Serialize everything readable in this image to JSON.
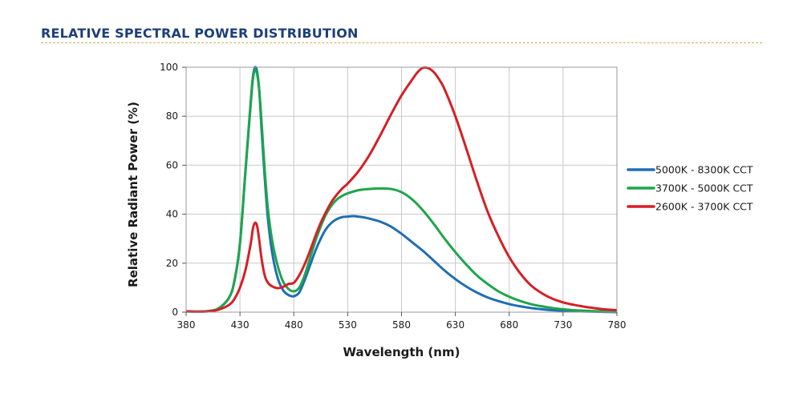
{
  "section": {
    "title": "RELATIVE SPECTRAL POWER DISTRIBUTION"
  },
  "chart_data": {
    "type": "line",
    "title": "",
    "xlabel": "Wavelength (nm)",
    "ylabel": "Relative Radiant Power (%)",
    "xlim": [
      380,
      780
    ],
    "ylim": [
      0,
      100
    ],
    "xticks": [
      380,
      430,
      480,
      530,
      580,
      630,
      680,
      730,
      780
    ],
    "yticks": [
      0,
      20,
      40,
      60,
      80,
      100
    ],
    "grid": true,
    "legend_position": "right",
    "plot_background": "#ffffff",
    "grid_color": "#c8c8c8",
    "series": [
      {
        "name": "5000K - 8300K CCT",
        "color": "#1f6eb4",
        "x": [
          380,
          390,
          400,
          410,
          420,
          425,
          430,
          435,
          440,
          442,
          444,
          446,
          448,
          450,
          453,
          456,
          460,
          465,
          470,
          475,
          480,
          485,
          490,
          495,
          500,
          505,
          510,
          515,
          520,
          525,
          530,
          535,
          540,
          545,
          550,
          560,
          570,
          580,
          590,
          600,
          610,
          620,
          630,
          640,
          650,
          660,
          670,
          680,
          690,
          700,
          710,
          720,
          730,
          740,
          750,
          760,
          770,
          780
        ],
        "y": [
          0.3,
          0.2,
          0.4,
          1.5,
          6,
          13,
          28,
          57,
          86,
          96,
          100,
          98,
          90,
          75,
          55,
          38,
          24,
          14,
          9,
          7,
          6.5,
          8,
          13,
          19,
          25,
          30,
          34,
          36.5,
          38,
          38.8,
          39,
          39.2,
          39,
          38.7,
          38.2,
          37,
          35,
          32,
          28.5,
          25,
          21,
          17,
          13.5,
          10.5,
          8,
          6,
          4.5,
          3.3,
          2.4,
          1.7,
          1.2,
          0.8,
          0.6,
          0.4,
          0.3,
          0.2,
          0.1,
          0
        ]
      },
      {
        "name": "3700K - 5000K CCT",
        "color": "#1ea54c",
        "x": [
          380,
          390,
          400,
          410,
          420,
          425,
          430,
          435,
          440,
          442,
          444,
          446,
          448,
          450,
          453,
          456,
          460,
          465,
          470,
          475,
          480,
          485,
          490,
          495,
          500,
          505,
          510,
          515,
          520,
          525,
          530,
          540,
          550,
          560,
          570,
          580,
          590,
          600,
          610,
          620,
          630,
          640,
          650,
          660,
          670,
          680,
          690,
          700,
          710,
          720,
          730,
          740,
          750,
          760,
          770,
          780
        ],
        "y": [
          0.3,
          0.2,
          0.4,
          1.5,
          6,
          13,
          28,
          57,
          85,
          95,
          99,
          97,
          90,
          78,
          58,
          42,
          29,
          19,
          12.5,
          9.5,
          8.5,
          10,
          15,
          22,
          29,
          35,
          40,
          43.5,
          46,
          47.5,
          48.5,
          49.8,
          50.3,
          50.5,
          50.3,
          49,
          46,
          41.5,
          36,
          30,
          24.5,
          19.5,
          15,
          11.5,
          8.5,
          6.3,
          4.6,
          3.3,
          2.4,
          1.7,
          1.2,
          0.8,
          0.6,
          0.4,
          0.3,
          0.2
        ]
      },
      {
        "name": "2600K - 3700K CCT",
        "color": "#d61f26",
        "x": [
          380,
          390,
          400,
          410,
          420,
          425,
          430,
          435,
          440,
          442,
          444,
          446,
          448,
          450,
          453,
          456,
          460,
          465,
          470,
          475,
          480,
          485,
          490,
          495,
          500,
          505,
          510,
          515,
          520,
          525,
          530,
          540,
          550,
          560,
          570,
          580,
          590,
          595,
          600,
          605,
          610,
          615,
          620,
          630,
          640,
          650,
          660,
          670,
          680,
          690,
          700,
          710,
          720,
          730,
          740,
          750,
          760,
          770,
          780
        ],
        "y": [
          0.3,
          0.2,
          0.3,
          1,
          3,
          5.5,
          10,
          17,
          28,
          34,
          36.5,
          35,
          29,
          22,
          15,
          12,
          10.5,
          9.8,
          10.3,
          11.5,
          12,
          15,
          19.5,
          25,
          31,
          36.5,
          41,
          45,
          48,
          50.5,
          52.5,
          57.5,
          64,
          72,
          80.5,
          88.5,
          95,
          98,
          99.8,
          99.6,
          98,
          95,
          91,
          80,
          67,
          53.5,
          41,
          31,
          22.5,
          16,
          11,
          7.8,
          5.5,
          4,
          3,
          2.2,
          1.6,
          1.1,
          0.8
        ]
      }
    ]
  }
}
